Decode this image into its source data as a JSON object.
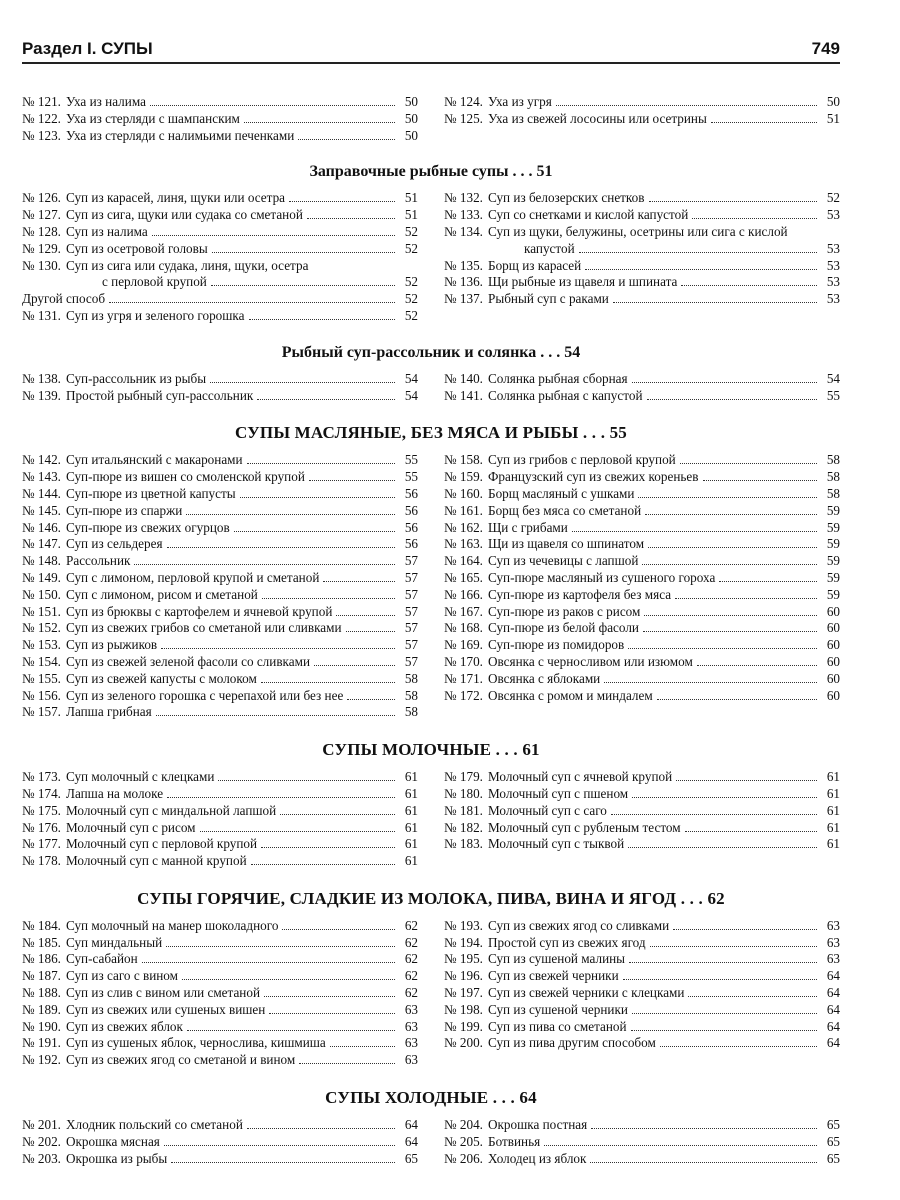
{
  "header": {
    "section": "Раздел I. СУПЫ",
    "page": "749"
  },
  "sections": [
    {
      "left": [
        {
          "num": "№ 121.",
          "text": "Уха из налима",
          "page": "50"
        },
        {
          "num": "№ 122.",
          "text": "Уха из стерляди с шампанским",
          "page": "50"
        },
        {
          "num": "№ 123.",
          "text": "Уха из стерляди с налимьими печенками",
          "page": "50"
        }
      ],
      "right": [
        {
          "num": "№ 124.",
          "text": "Уха из угря",
          "page": "50"
        },
        {
          "num": "№ 125.",
          "text": "Уха из свежей лососины или осетрины",
          "page": "51"
        }
      ]
    },
    {
      "title": "Заправочные рыбные супы . . . 51",
      "left": [
        {
          "num": "№ 126.",
          "text": "Суп из карасей, линя, щуки или осетра",
          "page": "51"
        },
        {
          "num": "№ 127.",
          "text": "Суп из сига, щуки или судака со сметаной",
          "page": "51"
        },
        {
          "num": "№ 128.",
          "text": "Суп из налима",
          "page": "52"
        },
        {
          "num": "№ 129.",
          "text": "Суп из осетровой головы",
          "page": "52"
        },
        {
          "num": "№ 130.",
          "text": "Суп из сига или судака, линя, щуки, осетра",
          "cont": "с перловой крупой",
          "page": "52"
        },
        {
          "text": "Другой способ",
          "page": "52"
        },
        {
          "num": "№ 131.",
          "text": "Суп из угря и зеленого горошка",
          "page": "52"
        }
      ],
      "right": [
        {
          "num": "№ 132.",
          "text": "Суп из белозерских снетков",
          "page": "52"
        },
        {
          "num": "№ 133.",
          "text": "Суп со снетками и кислой капустой",
          "page": "53"
        },
        {
          "num": "№ 134.",
          "text": "Суп из щуки, белужины, осетрины или сига с кислой",
          "cont": "капустой",
          "page": "53"
        },
        {
          "num": "№ 135.",
          "text": "Борщ из карасей",
          "page": "53"
        },
        {
          "num": "№ 136.",
          "text": "Щи рыбные из щавеля и шпината",
          "page": "53"
        },
        {
          "num": "№ 137.",
          "text": "Рыбный суп с раками",
          "page": "53"
        }
      ]
    },
    {
      "title": "Рыбный суп-рассольник и солянка . . . 54",
      "left": [
        {
          "num": "№ 138.",
          "text": "Суп-рассольник из рыбы",
          "page": "54"
        },
        {
          "num": "№ 139.",
          "text": "Простой рыбный суп-рассольник",
          "page": "54"
        }
      ],
      "right": [
        {
          "num": "№ 140.",
          "text": "Солянка рыбная сборная",
          "page": "54"
        },
        {
          "num": "№ 141.",
          "text": "Солянка рыбная с капустой",
          "page": "55"
        }
      ]
    },
    {
      "title": "СУПЫ МАСЛЯНЫЕ, БЕЗ МЯСА И РЫБЫ . . . 55",
      "left": [
        {
          "num": "№ 142.",
          "text": "Суп итальянский с макаронами",
          "page": "55"
        },
        {
          "num": "№ 143.",
          "text": "Суп-пюре из вишен со смоленской крупой",
          "page": "55"
        },
        {
          "num": "№ 144.",
          "text": "Суп-пюре из цветной капусты",
          "page": "56"
        },
        {
          "num": "№ 145.",
          "text": "Суп-пюре из спаржи",
          "page": "56"
        },
        {
          "num": "№ 146.",
          "text": "Суп-пюре из свежих огурцов",
          "page": "56"
        },
        {
          "num": "№ 147.",
          "text": "Суп из сельдерея",
          "page": "56"
        },
        {
          "num": "№ 148.",
          "text": "Рассольник",
          "page": "57"
        },
        {
          "num": "№ 149.",
          "text": "Суп с лимоном, перловой крупой и сметаной",
          "page": "57"
        },
        {
          "num": "№ 150.",
          "text": "Суп с лимоном, рисом и сметаной",
          "page": "57"
        },
        {
          "num": "№ 151.",
          "text": "Суп из брюквы с картофелем и ячневой крупой",
          "page": "57"
        },
        {
          "num": "№ 152.",
          "text": "Суп из свежих грибов со сметаной или сливками",
          "page": "57"
        },
        {
          "num": "№ 153.",
          "text": "Суп из рыжиков",
          "page": "57"
        },
        {
          "num": "№ 154.",
          "text": "Суп из свежей зеленой фасоли со сливками",
          "page": "57"
        },
        {
          "num": "№ 155.",
          "text": "Суп из свежей капусты с молоком",
          "page": "58"
        },
        {
          "num": "№ 156.",
          "text": "Суп из зеленого горошка с черепахой или без нее",
          "page": "58"
        },
        {
          "num": "№ 157.",
          "text": "Лапша грибная",
          "page": "58"
        }
      ],
      "right": [
        {
          "num": "№ 158.",
          "text": "Суп из грибов с перловой крупой",
          "page": "58"
        },
        {
          "num": "№ 159.",
          "text": "Французский суп из свежих кореньев",
          "page": "58"
        },
        {
          "num": "№ 160.",
          "text": "Борщ масляный с ушками",
          "page": "58"
        },
        {
          "num": "№ 161.",
          "text": "Борщ без мяса со сметаной",
          "page": "59"
        },
        {
          "num": "№ 162.",
          "text": "Щи с грибами",
          "page": "59"
        },
        {
          "num": "№ 163.",
          "text": "Щи из щавеля со шпинатом",
          "page": "59"
        },
        {
          "num": "№ 164.",
          "text": "Суп из чечевицы с лапшой",
          "page": "59"
        },
        {
          "num": "№ 165.",
          "text": "Суп-пюре масляный из сушеного гороха",
          "page": "59"
        },
        {
          "num": "№ 166.",
          "text": "Суп-пюре из картофеля без мяса",
          "page": "59"
        },
        {
          "num": "№ 167.",
          "text": "Суп-пюре из раков с рисом",
          "page": "60"
        },
        {
          "num": "№ 168.",
          "text": "Суп-пюре из белой фасоли",
          "page": "60"
        },
        {
          "num": "№ 169.",
          "text": "Суп-пюре из помидоров",
          "page": "60"
        },
        {
          "num": "№ 170.",
          "text": "Овсянка с черносливом или изюмом",
          "page": "60"
        },
        {
          "num": "№ 171.",
          "text": "Овсянка с яблоками",
          "page": "60"
        },
        {
          "num": "№ 172.",
          "text": "Овсянка с ромом и миндалем",
          "page": "60"
        }
      ]
    },
    {
      "title": "СУПЫ МОЛОЧНЫЕ . . . 61",
      "left": [
        {
          "num": "№ 173.",
          "text": "Суп молочный с клецками",
          "page": "61"
        },
        {
          "num": "№ 174.",
          "text": "Лапша на молоке",
          "page": "61"
        },
        {
          "num": "№ 175.",
          "text": "Молочный суп с миндальной лапшой",
          "page": "61"
        },
        {
          "num": "№ 176.",
          "text": "Молочный суп с рисом",
          "page": "61"
        },
        {
          "num": "№ 177.",
          "text": "Молочный суп с перловой крупой",
          "page": "61"
        },
        {
          "num": "№ 178.",
          "text": "Молочный суп с манной крупой",
          "page": "61"
        }
      ],
      "right": [
        {
          "num": "№ 179.",
          "text": "Молочный суп с ячневой крупой",
          "page": "61"
        },
        {
          "num": "№ 180.",
          "text": "Молочный суп с пшеном",
          "page": "61"
        },
        {
          "num": "№ 181.",
          "text": "Молочный суп с саго",
          "page": "61"
        },
        {
          "num": "№ 182.",
          "text": "Молочный суп с рубленым тестом",
          "page": "61"
        },
        {
          "num": "№ 183.",
          "text": "Молочный суп с тыквой",
          "page": "61"
        }
      ]
    },
    {
      "title": "СУПЫ ГОРЯЧИЕ, СЛАДКИЕ ИЗ МОЛОКА, ПИВА, ВИНА И ЯГОД . . . 62",
      "left": [
        {
          "num": "№ 184.",
          "text": "Суп молочный на манер шоколадного",
          "page": "62"
        },
        {
          "num": "№ 185.",
          "text": "Суп миндальный",
          "page": "62"
        },
        {
          "num": "№ 186.",
          "text": "Суп-сабайон",
          "page": "62"
        },
        {
          "num": "№ 187.",
          "text": "Суп из саго с вином",
          "page": "62"
        },
        {
          "num": "№ 188.",
          "text": "Суп из слив с вином или сметаной",
          "page": "62"
        },
        {
          "num": "№ 189.",
          "text": "Суп из свежих или сушеных вишен",
          "page": "63"
        },
        {
          "num": "№ 190.",
          "text": "Суп из свежих яблок",
          "page": "63"
        },
        {
          "num": "№ 191.",
          "text": "Суп из сушеных яблок, чернослива, кишмиша",
          "page": "63"
        },
        {
          "num": "№ 192.",
          "text": "Суп из свежих ягод со сметаной и вином",
          "page": "63"
        }
      ],
      "right": [
        {
          "num": "№ 193.",
          "text": "Суп из свежих ягод со сливками",
          "page": "63"
        },
        {
          "num": "№ 194.",
          "text": "Простой суп из свежих ягод",
          "page": "63"
        },
        {
          "num": "№ 195.",
          "text": "Суп из сушеной малины",
          "page": "63"
        },
        {
          "num": "№ 196.",
          "text": "Суп из свежей черники",
          "page": "64"
        },
        {
          "num": "№ 197.",
          "text": "Суп из свежей черники с клецками",
          "page": "64"
        },
        {
          "num": "№ 198.",
          "text": "Суп из сушеной черники",
          "page": "64"
        },
        {
          "num": "№ 199.",
          "text": "Суп из пива со сметаной",
          "page": "64"
        },
        {
          "num": "№ 200.",
          "text": "Суп из пива другим способом",
          "page": "64"
        }
      ]
    },
    {
      "title": "СУПЫ ХОЛОДНЫЕ . . . 64",
      "left": [
        {
          "num": "№ 201.",
          "text": "Хлодник польский со сметаной",
          "page": "64"
        },
        {
          "num": "№ 202.",
          "text": "Окрошка мясная",
          "page": "64"
        },
        {
          "num": "№ 203.",
          "text": "Окрошка из рыбы",
          "page": "65"
        }
      ],
      "right": [
        {
          "num": "№ 204.",
          "text": "Окрошка постная",
          "page": "65"
        },
        {
          "num": "№ 205.",
          "text": "Ботвинья",
          "page": "65"
        },
        {
          "num": "№ 206.",
          "text": "Холодец из яблок",
          "page": "65"
        }
      ]
    }
  ]
}
